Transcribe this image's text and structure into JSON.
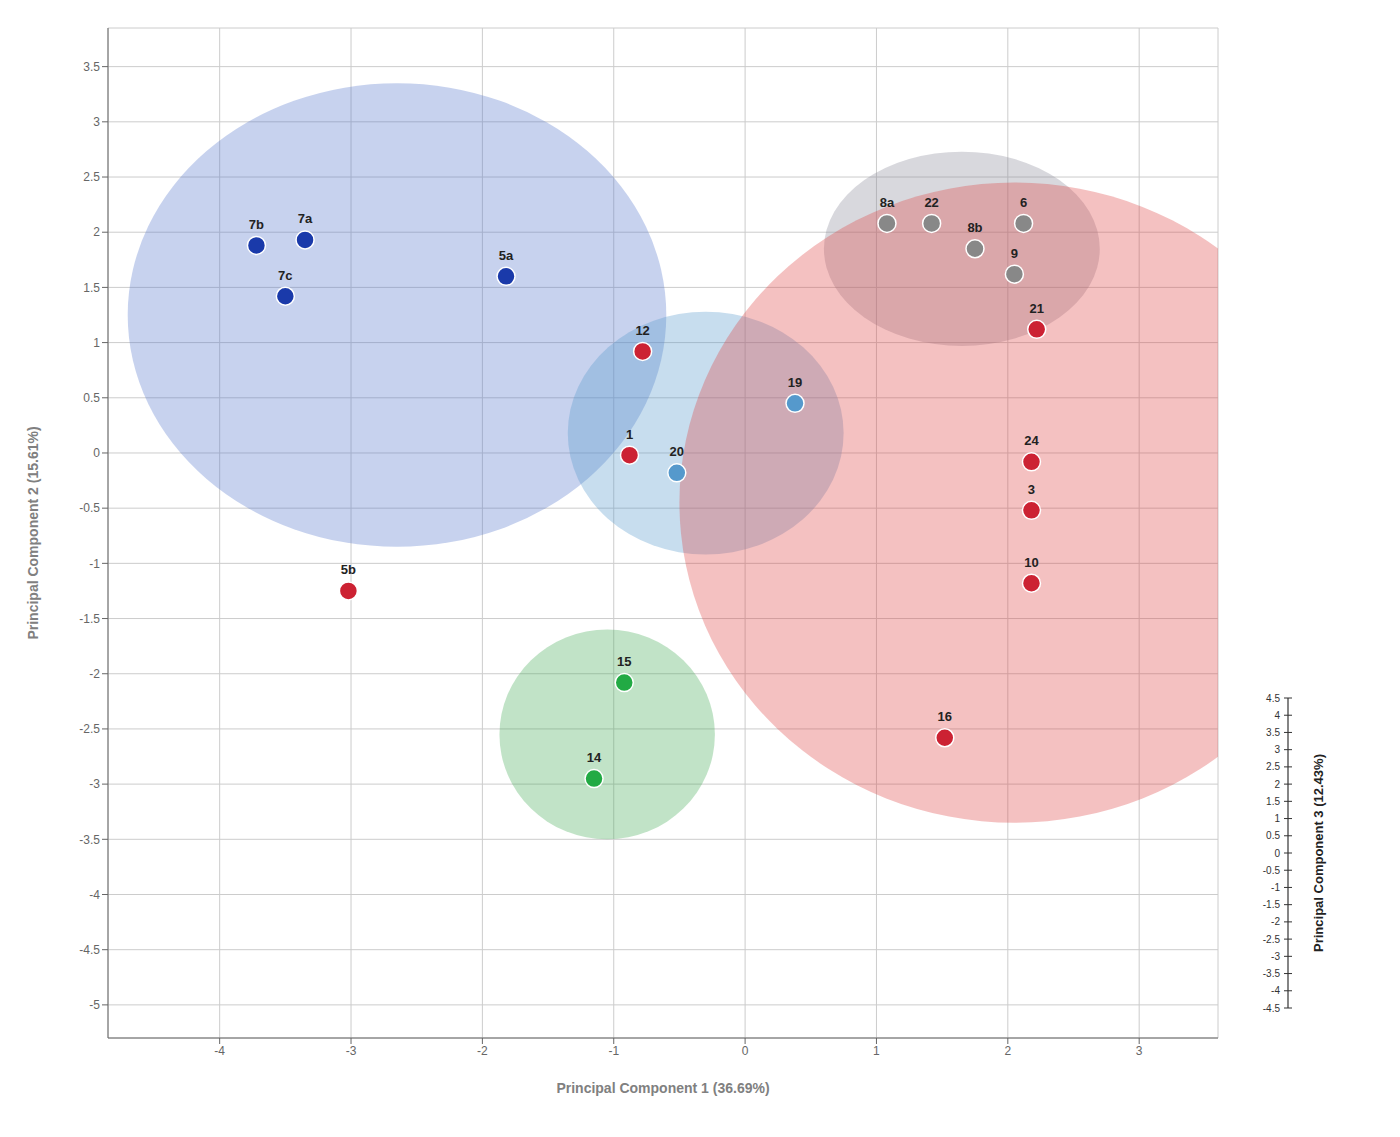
{
  "chart_data": {
    "type": "scatter",
    "xlabel": "Principal Component 1 (36.69%)",
    "ylabel": "Principal Component 2 (15.61%)",
    "zlabel": "Principal Component 3 (12.43%)",
    "xlim": [
      -4.85,
      3.6
    ],
    "ylim": [
      -5.3,
      3.85
    ],
    "xticks": [
      -4,
      -3,
      -2,
      -1,
      0,
      1,
      2,
      3
    ],
    "yticks": [
      -5,
      -4.5,
      -4,
      -3.5,
      -3,
      -2.5,
      -2,
      -1.5,
      -1,
      -0.5,
      0,
      0.5,
      1,
      1.5,
      2,
      2.5,
      3,
      3.5
    ],
    "grid": true,
    "labels": [
      "7b",
      "7a",
      "7c",
      "5a",
      "5b",
      "1",
      "20",
      "12",
      "19",
      "8a",
      "22",
      "8b",
      "6",
      "9",
      "21",
      "24",
      "3",
      "10",
      "16",
      "15",
      "14"
    ],
    "x": [
      -3.72,
      -3.35,
      -3.5,
      -1.82,
      -3.02,
      -0.88,
      -0.52,
      -0.78,
      0.38,
      1.08,
      1.42,
      1.75,
      2.12,
      2.05,
      2.22,
      2.18,
      2.18,
      2.18,
      1.52,
      -0.92,
      -1.15
    ],
    "values": [
      1.88,
      1.93,
      1.42,
      1.6,
      -1.25,
      -0.02,
      -0.18,
      0.92,
      0.45,
      2.08,
      2.08,
      1.85,
      2.08,
      1.62,
      1.12,
      -0.08,
      -0.52,
      -1.18,
      -2.58,
      -2.08,
      -2.95
    ],
    "colors": [
      "#1a3aaa",
      "#1a3aaa",
      "#1a3aaa",
      "#1a3aaa",
      "#cc2233",
      "#cc2233",
      "#5599cc",
      "#cc2233",
      "#5599cc",
      "#888888",
      "#888888",
      "#888888",
      "#888888",
      "#888888",
      "#cc2233",
      "#cc2233",
      "#cc2233",
      "#cc2233",
      "#cc2233",
      "#22aa44",
      "#22aa44"
    ],
    "ellipses": [
      {
        "cx": -2.65,
        "cy": 1.25,
        "rx": 2.05,
        "ry": 2.1,
        "color": "#5577cc"
      },
      {
        "cx": -0.3,
        "cy": 0.18,
        "rx": 1.05,
        "ry": 1.1,
        "color": "#5599cc"
      },
      {
        "cx": 1.65,
        "cy": 1.85,
        "rx": 1.05,
        "ry": 0.88,
        "color": "#888899"
      },
      {
        "cx": 2.05,
        "cy": -0.45,
        "rx": 2.55,
        "ry": 2.9,
        "color": "#dd4444"
      },
      {
        "cx": -1.05,
        "cy": -2.55,
        "rx": 0.82,
        "ry": 0.95,
        "color": "#44aa55"
      }
    ],
    "zticks": [
      4.5,
      4,
      3.5,
      3,
      2.5,
      2,
      1.5,
      1,
      0.5,
      0,
      -0.5,
      -1,
      -1.5,
      -2,
      -2.5,
      -3,
      -3.5,
      -4,
      -4.5
    ]
  }
}
